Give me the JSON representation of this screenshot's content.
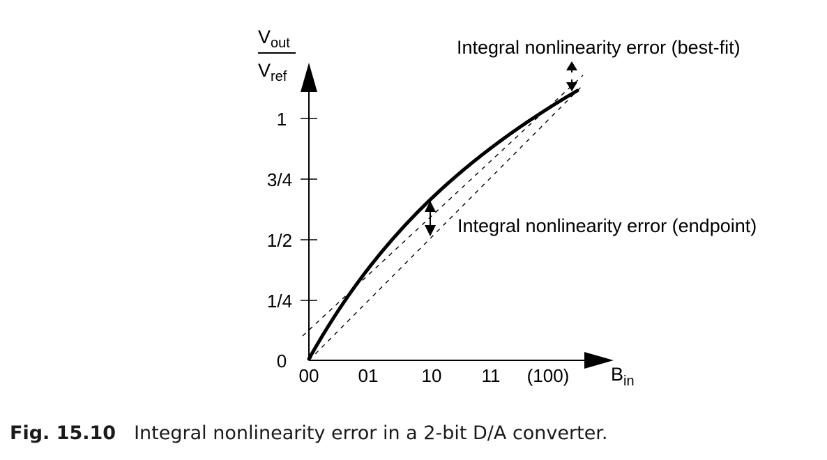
{
  "diagram": {
    "y_axis_label": {
      "numerator": {
        "base": "V",
        "sub": "out"
      },
      "denominator": {
        "base": "V",
        "sub": "ref"
      }
    },
    "x_axis_label": {
      "base": "B",
      "sub": "in"
    },
    "y_ticks": [
      "0",
      "1/4",
      "1/2",
      "3/4",
      "1"
    ],
    "x_ticks": [
      "00",
      "01",
      "10",
      "11",
      "(100)"
    ],
    "annotation_best_fit": "Integral nonlinearity error (best-fit)",
    "annotation_endpoint": "Integral nonlinearity error (endpoint)"
  },
  "caption": {
    "number": "Fig. 15.10",
    "text": "Integral nonlinearity error in a 2-bit D/A converter."
  }
}
